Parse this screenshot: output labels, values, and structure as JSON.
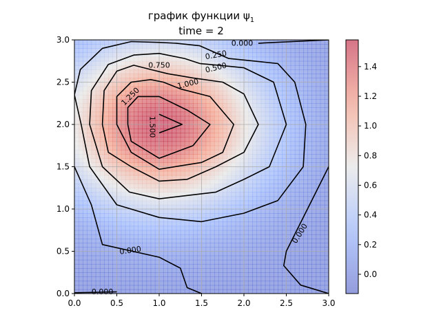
{
  "chart_data": {
    "type": "heatmap",
    "title_line1": "график функции ψ",
    "title_sub": "1",
    "title_line2": "time = 2",
    "xlabel": "",
    "ylabel": "",
    "xlim": [
      0,
      3
    ],
    "ylim": [
      0,
      3
    ],
    "x_ticks": [
      "0.0",
      "0.5",
      "1.0",
      "1.5",
      "2.0",
      "2.5",
      "3.0"
    ],
    "y_ticks": [
      "0.0",
      "0.5",
      "1.0",
      "1.5",
      "2.0",
      "2.5",
      "3.0"
    ],
    "grid": true,
    "colormap": "coolwarm",
    "colors": {
      "low": "#3b4cc0",
      "mid": "#dddddd",
      "high": "#b40426",
      "contour": "#000000",
      "grid": "#b0b0b0"
    },
    "peak": {
      "x": 1.0,
      "y": 2.0,
      "value": 1.55
    },
    "colorbar": {
      "range": [
        -0.13,
        1.58
      ],
      "ticks": [
        "0.0",
        "0.2",
        "0.4",
        "0.6",
        "0.8",
        "1.0",
        "1.2",
        "1.4"
      ]
    },
    "contour_levels": [
      "0.000",
      "0.250",
      "0.500",
      "0.750",
      "1.000",
      "1.250",
      "1.500"
    ],
    "contour_labels": [
      {
        "text": "0.000",
        "x": 1.98,
        "y": 2.96,
        "rot": 0
      },
      {
        "text": "0.250",
        "x": 1.67,
        "y": 2.82,
        "rot": -10
      },
      {
        "text": "0.500",
        "x": 1.67,
        "y": 2.67,
        "rot": -14
      },
      {
        "text": "0.750",
        "x": 1.0,
        "y": 2.7,
        "rot": 0
      },
      {
        "text": "1.000",
        "x": 1.34,
        "y": 2.48,
        "rot": -14
      },
      {
        "text": "1.250",
        "x": 0.66,
        "y": 2.33,
        "rot": -45
      },
      {
        "text": "1.500",
        "x": 0.92,
        "y": 1.97,
        "rot": 90
      },
      {
        "text": "0.000",
        "x": 0.66,
        "y": 0.51,
        "rot": -8
      },
      {
        "text": "0.000",
        "x": 0.33,
        "y": 0.02,
        "rot": 0
      },
      {
        "text": "0.000",
        "x": 2.66,
        "y": 0.71,
        "rot": -58
      }
    ],
    "contours": [
      {
        "level": "0.000",
        "points": [
          [
            0.0,
            1.5
          ],
          [
            0.2,
            1.05
          ],
          [
            0.33,
            0.58
          ],
          [
            1.0,
            0.43
          ],
          [
            1.25,
            0.3
          ],
          [
            1.33,
            0.07
          ],
          [
            1.5,
            0.0
          ]
        ]
      },
      {
        "level": "0.000",
        "points": [
          [
            0.0,
            0.01
          ],
          [
            0.5,
            0.02
          ]
        ]
      },
      {
        "level": "0.000",
        "points": [
          [
            3.0,
            1.5
          ],
          [
            2.5,
            0.5
          ],
          [
            2.47,
            0.33
          ],
          [
            2.67,
            0.1
          ],
          [
            3.0,
            0.0
          ]
        ]
      },
      {
        "level": "0.000",
        "points": [
          [
            2.17,
            2.96
          ],
          [
            3.0,
            3.0
          ]
        ]
      },
      {
        "level": "0.250",
        "points": [
          [
            1.2,
            2.96
          ],
          [
            1.48,
            2.93
          ],
          [
            1.82,
            2.78
          ],
          [
            2.4,
            2.72
          ],
          [
            2.6,
            2.5
          ],
          [
            2.73,
            2.0
          ],
          [
            2.7,
            1.5
          ],
          [
            2.4,
            1.1
          ],
          [
            2.0,
            0.95
          ],
          [
            1.5,
            0.85
          ],
          [
            1.0,
            0.9
          ],
          [
            0.5,
            1.05
          ],
          [
            0.18,
            1.5
          ],
          [
            0.08,
            2.0
          ],
          [
            0.0,
            2.35
          ],
          [
            0.07,
            2.65
          ],
          [
            0.33,
            2.9
          ],
          [
            0.67,
            2.98
          ],
          [
            1.0,
            2.97
          ],
          [
            1.2,
            2.96
          ]
        ]
      },
      {
        "level": "0.500",
        "points": [
          [
            1.48,
            2.72
          ],
          [
            1.7,
            2.7
          ],
          [
            2.0,
            2.67
          ],
          [
            2.35,
            2.5
          ],
          [
            2.5,
            2.0
          ],
          [
            2.3,
            1.5
          ],
          [
            2.0,
            1.35
          ],
          [
            1.67,
            1.2
          ],
          [
            1.0,
            1.12
          ],
          [
            0.65,
            1.2
          ],
          [
            0.33,
            1.5
          ],
          [
            0.18,
            2.0
          ],
          [
            0.2,
            2.4
          ],
          [
            0.4,
            2.71
          ],
          [
            0.7,
            2.82
          ],
          [
            1.0,
            2.84
          ],
          [
            1.3,
            2.78
          ],
          [
            1.48,
            2.72
          ]
        ]
      },
      {
        "level": "0.750",
        "points": [
          [
            1.4,
            2.55
          ],
          [
            1.75,
            2.5
          ],
          [
            2.0,
            2.36
          ],
          [
            2.17,
            2.0
          ],
          [
            2.0,
            1.67
          ],
          [
            1.67,
            1.5
          ],
          [
            1.33,
            1.35
          ],
          [
            1.0,
            1.33
          ],
          [
            0.67,
            1.5
          ],
          [
            0.4,
            1.67
          ],
          [
            0.33,
            2.0
          ],
          [
            0.35,
            2.4
          ],
          [
            0.5,
            2.63
          ],
          [
            0.7,
            2.7
          ],
          [
            0.9,
            2.65
          ],
          [
            1.1,
            2.6
          ],
          [
            1.4,
            2.55
          ]
        ]
      },
      {
        "level": "1.000",
        "points": [
          [
            1.25,
            2.42
          ],
          [
            1.6,
            2.33
          ],
          [
            1.88,
            2.0
          ],
          [
            1.75,
            1.67
          ],
          [
            1.5,
            1.55
          ],
          [
            1.0,
            1.47
          ],
          [
            0.67,
            1.67
          ],
          [
            0.5,
            2.0
          ],
          [
            0.5,
            2.33
          ],
          [
            0.67,
            2.5
          ],
          [
            0.9,
            2.53
          ],
          [
            1.05,
            2.5
          ],
          [
            1.25,
            2.42
          ]
        ]
      },
      {
        "level": "1.250",
        "points": [
          [
            1.0,
            2.33
          ],
          [
            1.33,
            2.17
          ],
          [
            1.6,
            2.0
          ],
          [
            1.4,
            1.75
          ],
          [
            1.0,
            1.6
          ],
          [
            0.67,
            1.8
          ],
          [
            0.63,
            2.0
          ],
          [
            0.63,
            2.2
          ],
          [
            0.75,
            2.33
          ],
          [
            1.0,
            2.33
          ]
        ]
      },
      {
        "level": "1.500",
        "points": [
          [
            1.0,
            2.12
          ],
          [
            1.27,
            2.0
          ],
          [
            1.0,
            1.9
          ]
        ]
      }
    ]
  }
}
